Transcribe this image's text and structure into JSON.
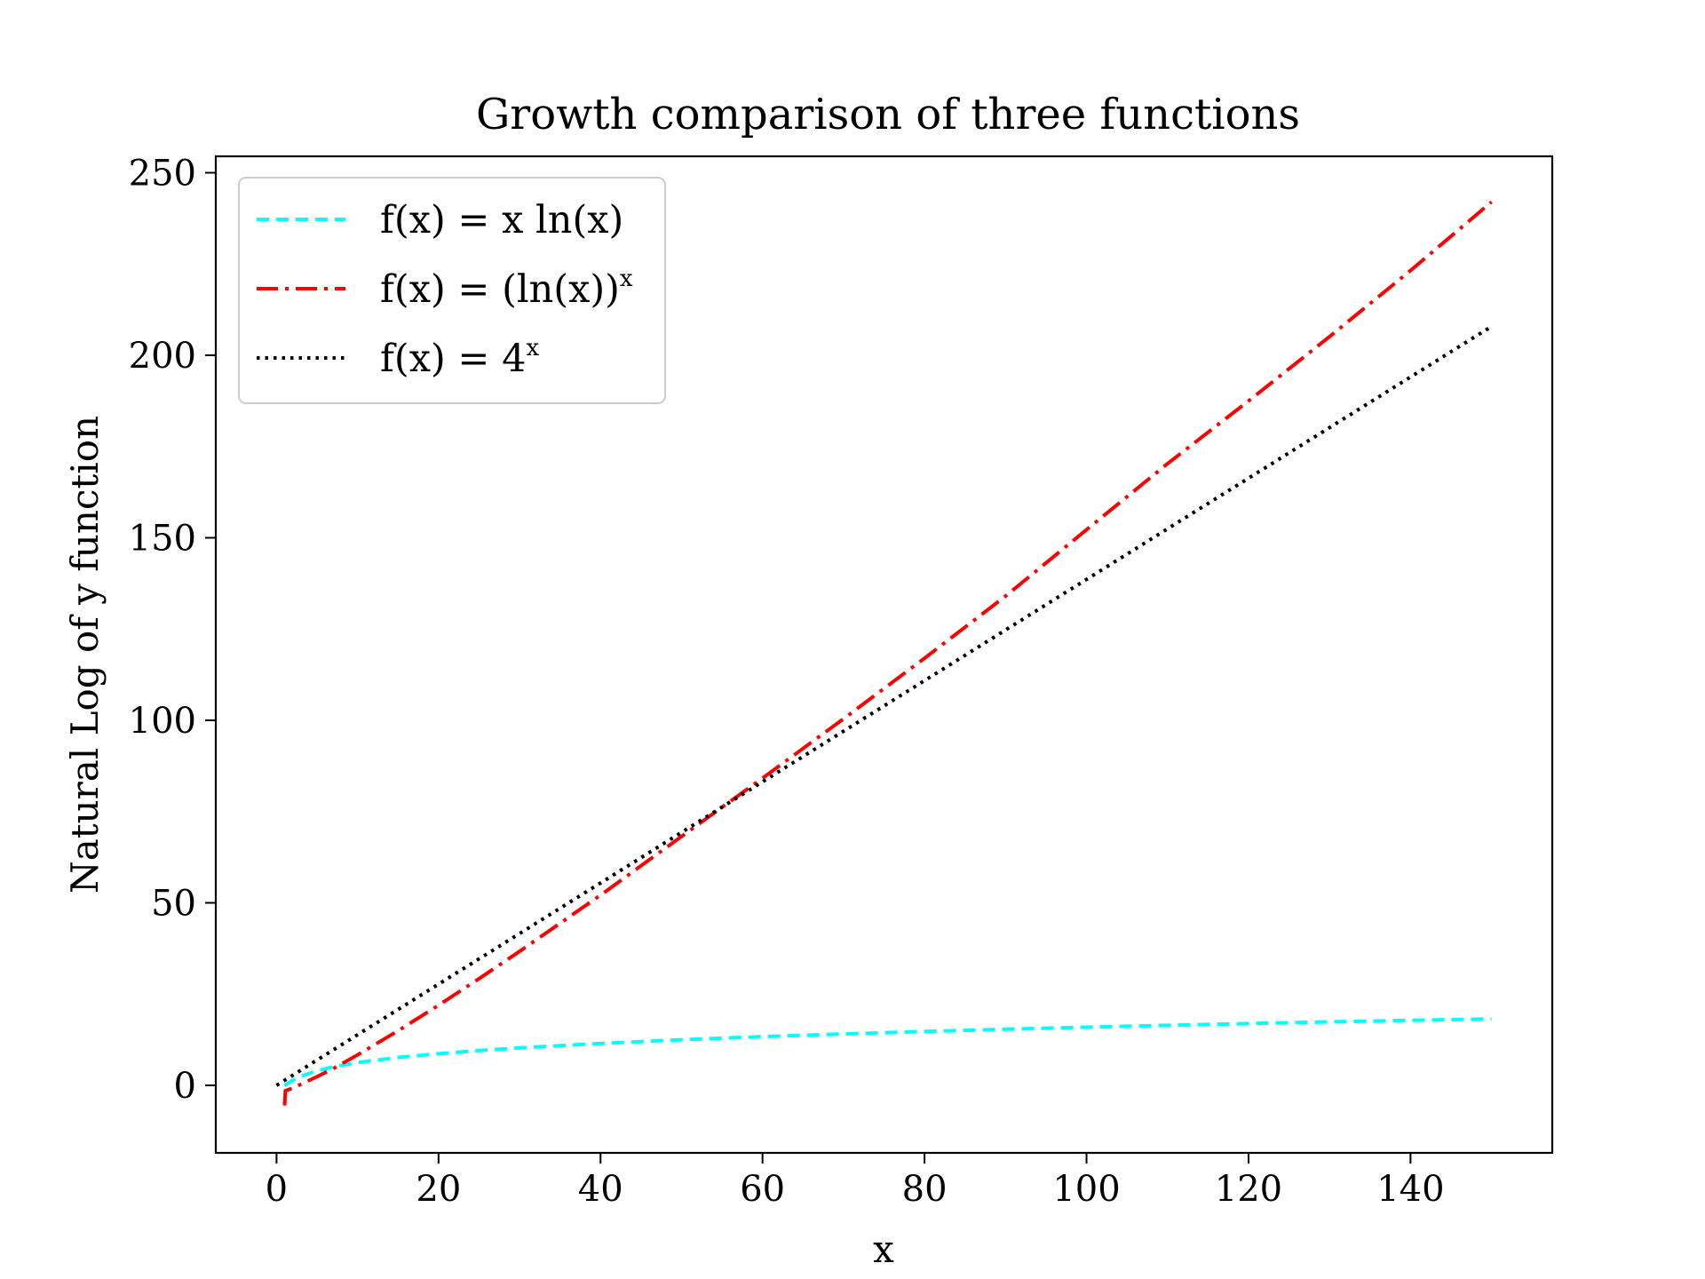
{
  "chart_data": {
    "type": "line",
    "title": "Growth comparison of three functions",
    "xlabel": "x",
    "ylabel": "Natural Log of y function",
    "xlim": [
      -7.5,
      157.5
    ],
    "ylim": [
      -18.5,
      254.5
    ],
    "xticks": [
      0,
      20,
      40,
      60,
      80,
      100,
      120,
      140
    ],
    "yticks": [
      0,
      50,
      100,
      150,
      200,
      250
    ],
    "legend_position": "upper-left",
    "series": [
      {
        "name": "f(x) = x ln(x)",
        "label_parts": {
          "base": "f(x) = x ln(x)",
          "sup": ""
        },
        "color": "#00ffff",
        "dash": "dashed",
        "x": [
          1,
          2,
          3,
          5,
          7,
          10,
          15,
          20,
          25,
          30,
          40,
          50,
          60,
          70,
          80,
          90,
          100,
          110,
          120,
          130,
          140,
          150
        ],
        "y": [
          0,
          1.39,
          2.49,
          3.97,
          5.06,
          6.25,
          7.62,
          8.66,
          9.52,
          10.25,
          11.48,
          12.49,
          13.35,
          14.09,
          14.76,
          15.38,
          15.93,
          16.45,
          16.93,
          17.38,
          17.8,
          18.2
        ]
      },
      {
        "name": "f(x) = (ln(x))^x",
        "label_parts": {
          "base": "f(x) = (ln(x))",
          "sup": "x"
        },
        "color": "#ff0000",
        "dash": "dashdot",
        "x": [
          1,
          1.1,
          2,
          3,
          5,
          7,
          10,
          15,
          20,
          25,
          30,
          40,
          50,
          60,
          70,
          80,
          90,
          100,
          110,
          120,
          130,
          140,
          150
        ],
        "y": [
          -5.5,
          -1.5,
          -0.73,
          0.28,
          2.38,
          4.6,
          8.34,
          14.94,
          21.94,
          29.21,
          36.68,
          52.11,
          68.19,
          84.15,
          100.4,
          117.0,
          134.0,
          152.2,
          170.3,
          187.5,
          205.1,
          223.2,
          242
        ]
      },
      {
        "name": "f(x) = 4^x",
        "label_parts": {
          "base": "f(x) = 4",
          "sup": "x"
        },
        "color": "#000000",
        "dash": "dotted",
        "x": [
          0,
          150
        ],
        "y": [
          0,
          207.9
        ]
      }
    ]
  }
}
